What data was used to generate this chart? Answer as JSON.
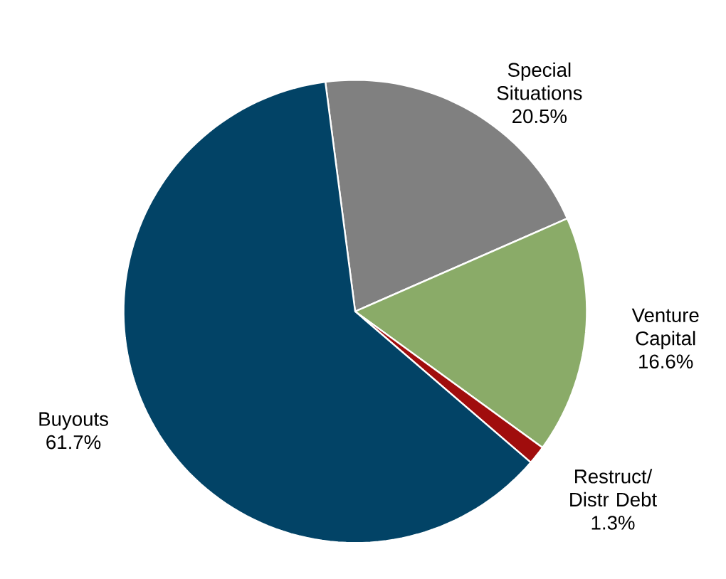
{
  "chart_data": {
    "type": "pie",
    "categories": [
      "Special Situations",
      "Venture Capital",
      "Restruct/ Distr Debt",
      "Buyouts"
    ],
    "values": [
      20.5,
      16.6,
      1.3,
      61.7
    ],
    "value_labels": [
      "20.5%",
      "16.6%",
      "1.3%",
      "61.7%"
    ],
    "colors": [
      "#808080",
      "#8aab68",
      "#a00d0d",
      "#024366"
    ]
  }
}
